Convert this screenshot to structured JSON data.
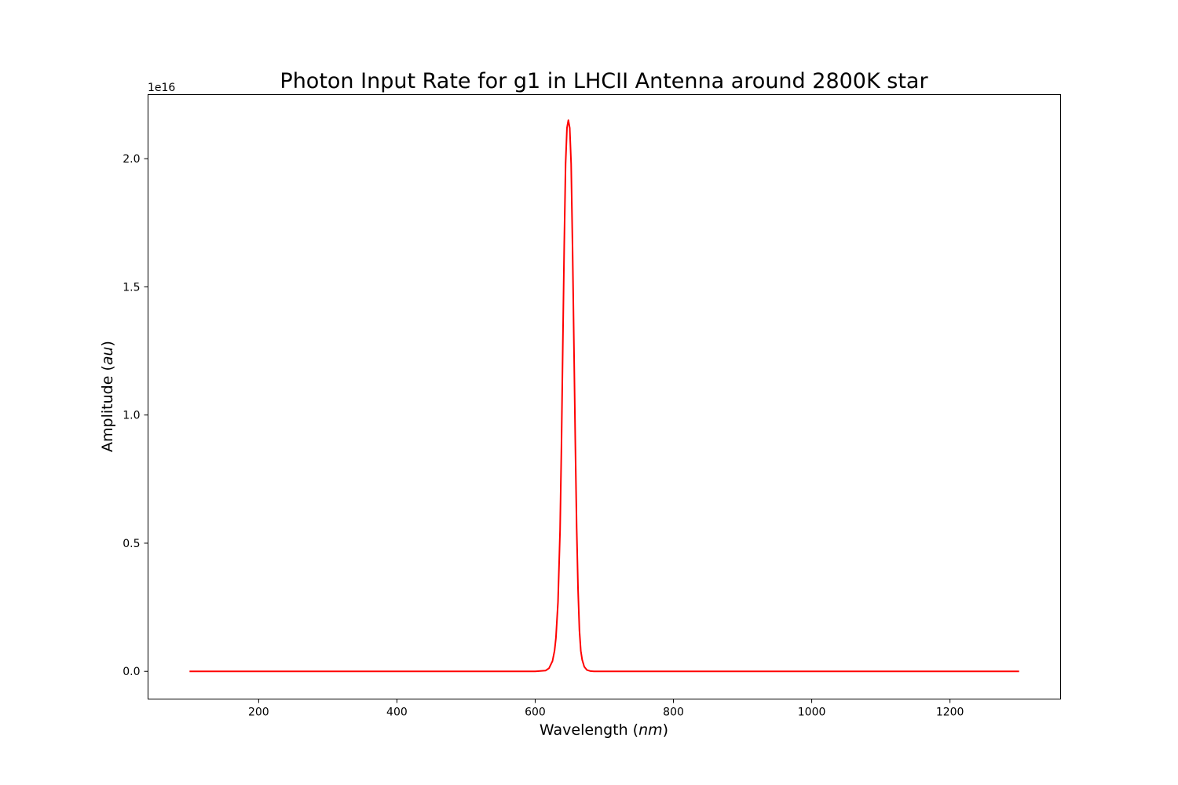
{
  "chart_data": {
    "type": "line",
    "title": "Photon Input Rate for g1 in LHCII Antenna around 2800K star",
    "xlabel_text": "Wavelength (",
    "xlabel_unit": "nm",
    "xlabel_close": ")",
    "ylabel_text": "Amplitude (",
    "ylabel_unit": "au",
    "ylabel_close": ")",
    "y_offset_label": "1e16",
    "y_scale": 1e+16,
    "xlim": [
      40,
      1360
    ],
    "ylim": [
      -0.108,
      2.25
    ],
    "x_ticks": [
      200,
      400,
      600,
      800,
      1000,
      1200
    ],
    "x_tick_labels": [
      "200",
      "400",
      "600",
      "800",
      "1000",
      "1200"
    ],
    "y_ticks": [
      0.0,
      0.5,
      1.0,
      1.5,
      2.0
    ],
    "y_tick_labels": [
      "0.0",
      "0.5",
      "1.0",
      "1.5",
      "2.0"
    ],
    "grid": false,
    "series": [
      {
        "color": "#ff0000",
        "x": [
          100,
          550,
          600,
          615,
          620,
          625,
          628,
          630,
          633,
          636,
          638,
          640,
          642,
          644,
          646,
          648,
          650,
          652,
          654,
          656,
          658,
          660,
          662,
          664,
          666,
          668,
          671,
          675,
          680,
          685,
          700,
          800,
          1000,
          1300
        ],
        "y": [
          0.0,
          0.0,
          0.0,
          0.003,
          0.012,
          0.04,
          0.08,
          0.13,
          0.27,
          0.55,
          0.88,
          1.28,
          1.66,
          1.98,
          2.12,
          2.15,
          2.12,
          1.98,
          1.66,
          1.28,
          0.9,
          0.56,
          0.32,
          0.16,
          0.08,
          0.045,
          0.018,
          0.005,
          0.001,
          0.0,
          0.0,
          0.0,
          0.0,
          0.0
        ]
      }
    ]
  }
}
